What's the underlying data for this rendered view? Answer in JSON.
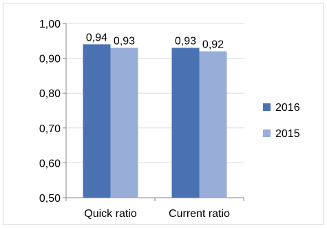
{
  "chart_data": {
    "type": "bar",
    "categories": [
      "Quick ratio",
      "Current ratio"
    ],
    "series": [
      {
        "name": "2016",
        "values": [
          0.94,
          0.93
        ],
        "labels": [
          "0,94",
          "0,93"
        ],
        "color": "#4a72b2"
      },
      {
        "name": "2015",
        "values": [
          0.93,
          0.92
        ],
        "labels": [
          "0,93",
          "0,92"
        ],
        "color": "#98add7"
      }
    ],
    "ylim": [
      0.5,
      1.0
    ],
    "yticks": [
      {
        "value": 1.0,
        "label": "1,00"
      },
      {
        "value": 0.9,
        "label": "0,90"
      },
      {
        "value": 0.8,
        "label": "0,80"
      },
      {
        "value": 0.7,
        "label": "0,70"
      },
      {
        "value": 0.6,
        "label": "0,60"
      },
      {
        "value": 0.5,
        "label": "0,50"
      }
    ],
    "grid": true,
    "legend_position": "right",
    "colors": {
      "gridline": "#d9d9d9",
      "axis": "#868686"
    }
  }
}
